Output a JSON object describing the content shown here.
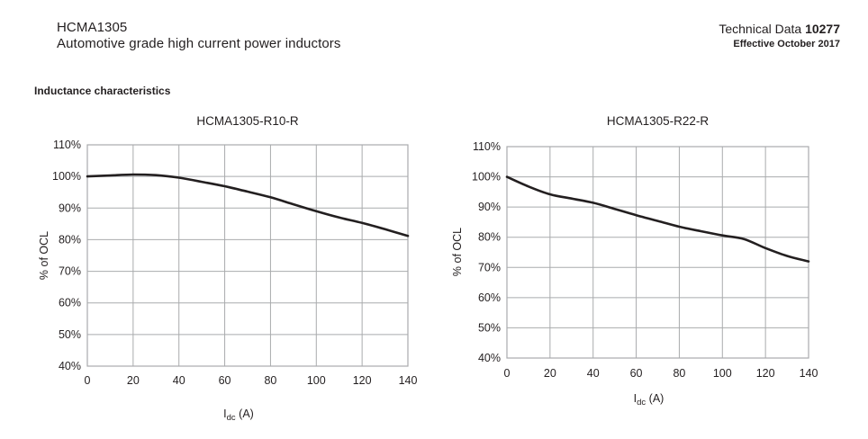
{
  "header": {
    "product": "HCMA1305",
    "subtitle": "Automotive grade high current power inductors",
    "doc_type": "Technical Data",
    "doc_number": "10277",
    "effective": "Effective October 2017"
  },
  "section_title": "Inductance characteristics",
  "colors": {
    "text": "#231f20",
    "grid": "#a9abad",
    "curve": "#231f20"
  },
  "chart_data": [
    {
      "type": "line",
      "title": "HCMA1305-R10-R",
      "ylabel": "% of OCL",
      "xlabel": {
        "base": "I",
        "sub": "dc",
        "rest": " (A)"
      },
      "xlim": [
        0,
        140
      ],
      "ylim": [
        40,
        110
      ],
      "grid": true,
      "legend": "none",
      "xticks": [
        0,
        20,
        40,
        60,
        80,
        100,
        120,
        140
      ],
      "yticks": [
        110,
        100,
        90,
        80,
        70,
        60,
        50,
        40
      ],
      "ytick_labels": [
        "110%",
        "100%",
        "90%",
        "80%",
        "70%",
        "60%",
        "50%",
        "40%"
      ],
      "series": [
        {
          "name": "HCMA1305-R10-R",
          "x": [
            0,
            10,
            20,
            30,
            40,
            50,
            60,
            70,
            80,
            90,
            100,
            110,
            120,
            130,
            140
          ],
          "y": [
            100,
            100.3,
            100.6,
            100.4,
            99.6,
            98.3,
            96.9,
            95.2,
            93.4,
            91.2,
            89.0,
            87.0,
            85.3,
            83.3,
            81.2
          ]
        }
      ]
    },
    {
      "type": "line",
      "title": "HCMA1305-R22-R",
      "ylabel": "% of OCL",
      "xlabel": {
        "base": "I",
        "sub": "dc",
        "rest": " (A)"
      },
      "xlim": [
        0,
        140
      ],
      "ylim": [
        40,
        110
      ],
      "grid": true,
      "legend": "none",
      "xticks": [
        0,
        20,
        40,
        60,
        80,
        100,
        120,
        140
      ],
      "yticks": [
        110,
        100,
        90,
        80,
        70,
        60,
        50,
        40
      ],
      "ytick_labels": [
        "110%",
        "100%",
        "90%",
        "80%",
        "70%",
        "60%",
        "50%",
        "40%"
      ],
      "series": [
        {
          "name": "HCMA1305-R22-R",
          "x": [
            0,
            10,
            20,
            30,
            40,
            50,
            60,
            70,
            80,
            90,
            100,
            110,
            120,
            130,
            140
          ],
          "y": [
            100,
            96.8,
            94.2,
            92.8,
            91.4,
            89.4,
            87.3,
            85.4,
            83.5,
            82.0,
            80.6,
            79.4,
            76.4,
            73.8,
            72.0
          ]
        }
      ]
    }
  ]
}
